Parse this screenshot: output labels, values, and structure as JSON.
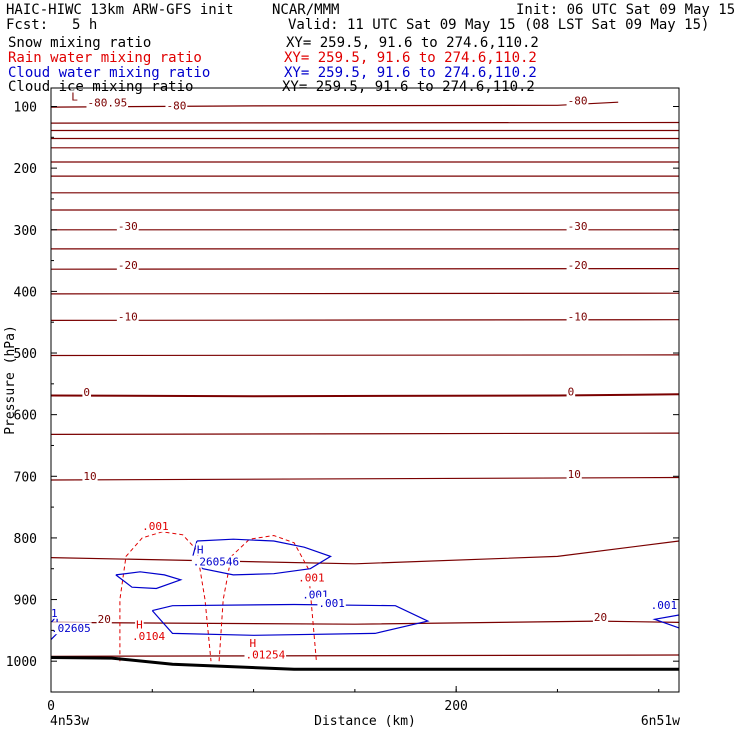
{
  "header": {
    "model": "HAIC-HIWC 13km ARW-GFS init",
    "org": "NCAR/MMM",
    "init": "Init: 06 UTC Sat 09 May 15",
    "fcst_label": "Fcst:",
    "fcst_value": "5 h",
    "valid": "Valid: 11 UTC Sat 09 May 15 (08 LST Sat 09 May 15)"
  },
  "fields": [
    {
      "name": "Snow mixing ratio",
      "xy": "XY= 259.5, 91.6 to 274.6,110.2",
      "color": "#000000"
    },
    {
      "name": "Rain water mixing ratio",
      "xy": "XY= 259.5, 91.6 to 274.6,110.2",
      "color": "#e00000"
    },
    {
      "name": "Cloud water mixing ratio",
      "xy": "XY= 259.5, 91.6 to 274.6,110.2",
      "color": "#0000cc"
    },
    {
      "name": "Cloud ice mixing ratio",
      "xy": "XY= 259.5, 91.6 to 274.6,110.2",
      "color": "#000000"
    }
  ],
  "chart_data": {
    "type": "contour",
    "xlabel": "Distance (km)",
    "ylabel": "Pressure (hPa)",
    "xlim": [
      0,
      310
    ],
    "ylim": [
      1050,
      70
    ],
    "x_ticks": [
      {
        "value": 0,
        "label": "0"
      },
      {
        "value": 200,
        "label": "200"
      }
    ],
    "y_ticks": [
      {
        "value": 100,
        "label": "100"
      },
      {
        "value": 200,
        "label": "200"
      },
      {
        "value": 300,
        "label": "300"
      },
      {
        "value": 400,
        "label": "400"
      },
      {
        "value": 500,
        "label": "500"
      },
      {
        "value": 600,
        "label": "600"
      },
      {
        "value": 700,
        "label": "700"
      },
      {
        "value": 800,
        "label": "800"
      },
      {
        "value": 900,
        "label": "900"
      },
      {
        "value": 1000,
        "label": "1000"
      }
    ],
    "endpoints": {
      "left": "4n53w",
      "right": "6n51w"
    },
    "colors": {
      "temperature": "#7a0000",
      "rain": "#e00000",
      "cloud_water": "#0000cc",
      "terrain": "#000000"
    },
    "isotherms": {
      "interval": 5,
      "lines": [
        {
          "points": [
            [
              0,
              101
            ],
            [
              100,
              99
            ],
            [
              250,
              98
            ],
            [
              280,
              93
            ]
          ]
        },
        {
          "points": [
            [
              0,
              127
            ],
            [
              310,
              126
            ]
          ]
        },
        {
          "points": [
            [
              0,
              139
            ],
            [
              310,
              139
            ]
          ]
        },
        {
          "points": [
            [
              0,
              152
            ],
            [
              310,
              152
            ]
          ]
        },
        {
          "points": [
            [
              0,
              167
            ],
            [
              310,
              167
            ]
          ]
        },
        {
          "points": [
            [
              0,
              190
            ],
            [
              310,
              190
            ]
          ]
        },
        {
          "points": [
            [
              0,
              213
            ],
            [
              310,
              213
            ]
          ]
        },
        {
          "points": [
            [
              0,
              240
            ],
            [
              310,
              240
            ]
          ]
        },
        {
          "points": [
            [
              0,
              268
            ],
            [
              310,
              268
            ]
          ]
        },
        {
          "points": [
            [
              0,
              300
            ],
            [
              310,
              300
            ]
          ]
        },
        {
          "points": [
            [
              0,
              331
            ],
            [
              310,
              331
            ]
          ]
        },
        {
          "points": [
            [
              0,
              364
            ],
            [
              310,
              363
            ]
          ]
        },
        {
          "points": [
            [
              0,
              404
            ],
            [
              310,
              403
            ]
          ]
        },
        {
          "points": [
            [
              0,
              447
            ],
            [
              310,
              446
            ]
          ]
        },
        {
          "points": [
            [
              0,
              504
            ],
            [
              310,
              503
            ]
          ]
        },
        {
          "points": [
            [
              0,
              569
            ],
            [
              100,
              570
            ],
            [
              250,
              569
            ],
            [
              310,
              567
            ]
          ]
        },
        {
          "points": [
            [
              0,
              632
            ],
            [
              310,
              630
            ]
          ]
        },
        {
          "points": [
            [
              0,
              706
            ],
            [
              310,
              702
            ]
          ]
        },
        {
          "points": [
            [
              0,
              832
            ],
            [
              150,
              842
            ],
            [
              250,
              830
            ],
            [
              310,
              805
            ]
          ]
        },
        {
          "points": [
            [
              0,
              937
            ],
            [
              150,
              940
            ],
            [
              270,
              935
            ],
            [
              310,
              937
            ]
          ]
        },
        {
          "points": [
            [
              0,
              992
            ],
            [
              310,
              990
            ]
          ]
        }
      ],
      "labels": [
        {
          "text": "L",
          "x": 10,
          "y": 90
        },
        {
          "text": "-80.95",
          "x": 18,
          "y": 100
        },
        {
          "text": "-80",
          "x": 57,
          "y": 105
        },
        {
          "text": "-80",
          "x": 255,
          "y": 97
        },
        {
          "text": "-30",
          "x": 33,
          "y": 300
        },
        {
          "text": "-30",
          "x": 255,
          "y": 300
        },
        {
          "text": "-20",
          "x": 33,
          "y": 364
        },
        {
          "text": "-20",
          "x": 255,
          "y": 364
        },
        {
          "text": "-10",
          "x": 33,
          "y": 447
        },
        {
          "text": "-10",
          "x": 255,
          "y": 447
        },
        {
          "text": "0",
          "x": 16,
          "y": 570
        },
        {
          "text": "0",
          "x": 255,
          "y": 569
        },
        {
          "text": "10",
          "x": 16,
          "y": 706
        },
        {
          "text": "10",
          "x": 255,
          "y": 703
        },
        {
          "text": "20",
          "x": 23,
          "y": 938
        },
        {
          "text": "20",
          "x": 268,
          "y": 935
        }
      ]
    },
    "rain_water": {
      "contours": [
        {
          "points": [
            [
              34,
              1000
            ],
            [
              34,
              900
            ],
            [
              37,
              830
            ],
            [
              45,
              800
            ],
            [
              55,
              790
            ],
            [
              65,
              795
            ],
            [
              72,
              820
            ],
            [
              76,
              900
            ],
            [
              79,
              1000
            ]
          ]
        },
        {
          "points": [
            [
              83,
              1000
            ],
            [
              85,
              900
            ],
            [
              89,
              830
            ],
            [
              98,
              802
            ],
            [
              110,
              796
            ],
            [
              120,
              808
            ],
            [
              127,
              850
            ],
            [
              131,
              1000
            ]
          ]
        }
      ],
      "labels": [
        {
          "text": ".001",
          "x": 45,
          "y": 787
        },
        {
          "text": ".001",
          "x": 122,
          "y": 871
        },
        {
          "text": "H",
          "x": 42,
          "y": 947
        },
        {
          "text": ".0104",
          "x": 40,
          "y": 966
        },
        {
          "text": "H",
          "x": 98,
          "y": 977
        },
        {
          "text": ".01254",
          "x": 96,
          "y": 996
        }
      ]
    },
    "cloud_water": {
      "contours": [
        {
          "points": [
            [
              72,
              805
            ],
            [
              90,
              802
            ],
            [
              110,
              805
            ],
            [
              125,
              815
            ],
            [
              138,
              830
            ],
            [
              128,
              850
            ],
            [
              110,
              858
            ],
            [
              90,
              860
            ],
            [
              75,
              850
            ],
            [
              70,
              830
            ],
            [
              72,
              805
            ]
          ]
        },
        {
          "points": [
            [
              32,
              860
            ],
            [
              44,
              855
            ],
            [
              56,
              860
            ],
            [
              64,
              868
            ],
            [
              52,
              882
            ],
            [
              40,
              880
            ],
            [
              32,
              860
            ]
          ]
        },
        {
          "points": [
            [
              50,
              918
            ],
            [
              60,
              910
            ],
            [
              120,
              908
            ],
            [
              170,
              910
            ],
            [
              186,
              935
            ],
            [
              160,
              955
            ],
            [
              100,
              958
            ],
            [
              60,
              955
            ],
            [
              50,
              918
            ]
          ]
        },
        {
          "points": [
            [
              0,
              938
            ],
            [
              3,
              925
            ],
            [
              3,
              955
            ],
            [
              0,
              965
            ]
          ]
        },
        {
          "points": [
            [
              310,
              946
            ],
            [
              298,
              932
            ],
            [
              310,
              925
            ]
          ]
        }
      ],
      "labels": [
        {
          "text": "H",
          "x": 72,
          "y": 825
        },
        {
          "text": ".260546",
          "x": 70,
          "y": 845
        },
        {
          "text": ".001",
          "x": 124,
          "y": 898
        },
        {
          "text": ".001",
          "x": 132,
          "y": 912
        },
        {
          "text": ".02605",
          "x": 0,
          "y": 953
        },
        {
          "text": ".001",
          "x": 296,
          "y": 915
        },
        {
          "text": "1",
          "x": 0,
          "y": 928
        }
      ]
    },
    "terrain": {
      "points": [
        [
          0,
          994
        ],
        [
          30,
          995
        ],
        [
          60,
          1005
        ],
        [
          120,
          1013
        ],
        [
          310,
          1013
        ]
      ]
    }
  }
}
